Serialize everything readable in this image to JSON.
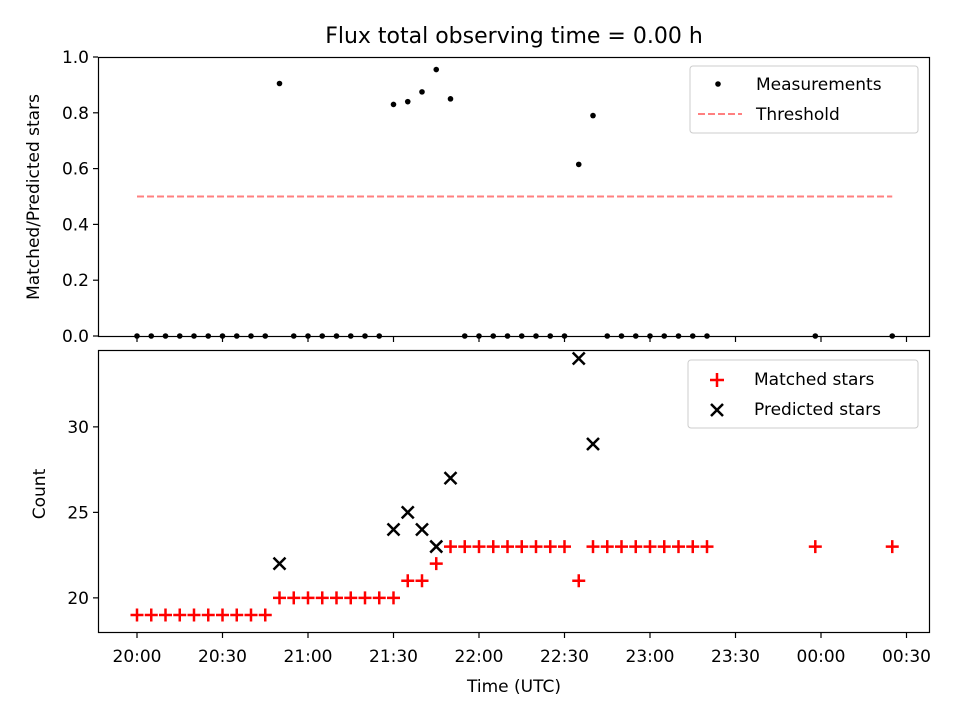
{
  "figure": {
    "title": "Flux total observing time = 0.00 h"
  },
  "chart_data": [
    {
      "type": "scatter",
      "panel": "top",
      "ylabel": "Matched/Predicted stars",
      "xlabel": "",
      "ylim": [
        0,
        1.0
      ],
      "yticks": [
        0.0,
        0.2,
        0.4,
        0.6,
        0.8,
        1.0
      ],
      "ytick_labels": [
        "0.0",
        "0.2",
        "0.4",
        "0.6",
        "0.8",
        "1.0"
      ],
      "legend_position": "top-right",
      "series": [
        {
          "name": "Measurements",
          "marker": "dot",
          "color": "#000000",
          "points": [
            [
              "20:00",
              0
            ],
            [
              "20:05",
              0
            ],
            [
              "20:10",
              0
            ],
            [
              "20:15",
              0
            ],
            [
              "20:20",
              0
            ],
            [
              "20:25",
              0
            ],
            [
              "20:30",
              0
            ],
            [
              "20:35",
              0
            ],
            [
              "20:40",
              0
            ],
            [
              "20:45",
              0
            ],
            [
              "20:50",
              0.905
            ],
            [
              "20:55",
              0
            ],
            [
              "21:00",
              0
            ],
            [
              "21:05",
              0
            ],
            [
              "21:10",
              0
            ],
            [
              "21:15",
              0
            ],
            [
              "21:20",
              0
            ],
            [
              "21:25",
              0
            ],
            [
              "21:30",
              0.83
            ],
            [
              "21:35",
              0.84
            ],
            [
              "21:40",
              0.875
            ],
            [
              "21:45",
              0.955
            ],
            [
              "21:50",
              0.85
            ],
            [
              "21:55",
              0
            ],
            [
              "22:00",
              0
            ],
            [
              "22:05",
              0
            ],
            [
              "22:10",
              0
            ],
            [
              "22:15",
              0
            ],
            [
              "22:20",
              0
            ],
            [
              "22:25",
              0
            ],
            [
              "22:30",
              0
            ],
            [
              "22:35",
              0.615
            ],
            [
              "22:40",
              0.79
            ],
            [
              "22:45",
              0
            ],
            [
              "22:50",
              0
            ],
            [
              "22:55",
              0
            ],
            [
              "23:00",
              0
            ],
            [
              "23:05",
              0
            ],
            [
              "23:10",
              0
            ],
            [
              "23:15",
              0
            ],
            [
              "23:20",
              0
            ],
            [
              "23:58",
              0
            ],
            [
              "00:25",
              0
            ]
          ]
        },
        {
          "name": "Threshold",
          "marker": "dashed-line",
          "color": "#ff8080",
          "points": [
            [
              "20:00",
              0.5
            ],
            [
              "00:25",
              0.5
            ]
          ]
        }
      ]
    },
    {
      "type": "scatter",
      "panel": "bottom",
      "ylabel": "Count",
      "xlabel": "Time (UTC)",
      "ylim": [
        18.3,
        34.7
      ],
      "yticks": [
        20,
        25,
        30
      ],
      "ytick_labels": [
        "20",
        "25",
        "30"
      ],
      "xticks": [
        "20:00",
        "20:30",
        "21:00",
        "21:30",
        "22:00",
        "22:30",
        "23:00",
        "23:30",
        "00:00",
        "00:30"
      ],
      "legend_position": "top-right",
      "series": [
        {
          "name": "Matched stars",
          "marker": "plus",
          "color": "#ff0000",
          "points": [
            [
              "20:00",
              19
            ],
            [
              "20:05",
              19
            ],
            [
              "20:10",
              19
            ],
            [
              "20:15",
              19
            ],
            [
              "20:20",
              19
            ],
            [
              "20:25",
              19
            ],
            [
              "20:30",
              19
            ],
            [
              "20:35",
              19
            ],
            [
              "20:40",
              19
            ],
            [
              "20:45",
              19
            ],
            [
              "20:50",
              20
            ],
            [
              "20:55",
              20
            ],
            [
              "21:00",
              20
            ],
            [
              "21:05",
              20
            ],
            [
              "21:10",
              20
            ],
            [
              "21:15",
              20
            ],
            [
              "21:20",
              20
            ],
            [
              "21:25",
              20
            ],
            [
              "21:30",
              20
            ],
            [
              "21:35",
              21
            ],
            [
              "21:40",
              21
            ],
            [
              "21:45",
              22
            ],
            [
              "21:50",
              23
            ],
            [
              "21:55",
              23
            ],
            [
              "22:00",
              23
            ],
            [
              "22:05",
              23
            ],
            [
              "22:10",
              23
            ],
            [
              "22:15",
              23
            ],
            [
              "22:20",
              23
            ],
            [
              "22:25",
              23
            ],
            [
              "22:30",
              23
            ],
            [
              "22:35",
              21
            ],
            [
              "22:40",
              23
            ],
            [
              "22:45",
              23
            ],
            [
              "22:50",
              23
            ],
            [
              "22:55",
              23
            ],
            [
              "23:00",
              23
            ],
            [
              "23:05",
              23
            ],
            [
              "23:10",
              23
            ],
            [
              "23:15",
              23
            ],
            [
              "23:20",
              23
            ],
            [
              "23:58",
              23
            ],
            [
              "00:25",
              23
            ]
          ]
        },
        {
          "name": "Predicted stars",
          "marker": "x",
          "color": "#000000",
          "points": [
            [
              "20:50",
              22
            ],
            [
              "21:30",
              24
            ],
            [
              "21:35",
              25
            ],
            [
              "21:40",
              24
            ],
            [
              "21:45",
              23
            ],
            [
              "21:50",
              27
            ],
            [
              "22:35",
              34
            ],
            [
              "22:40",
              29
            ]
          ]
        }
      ]
    }
  ]
}
